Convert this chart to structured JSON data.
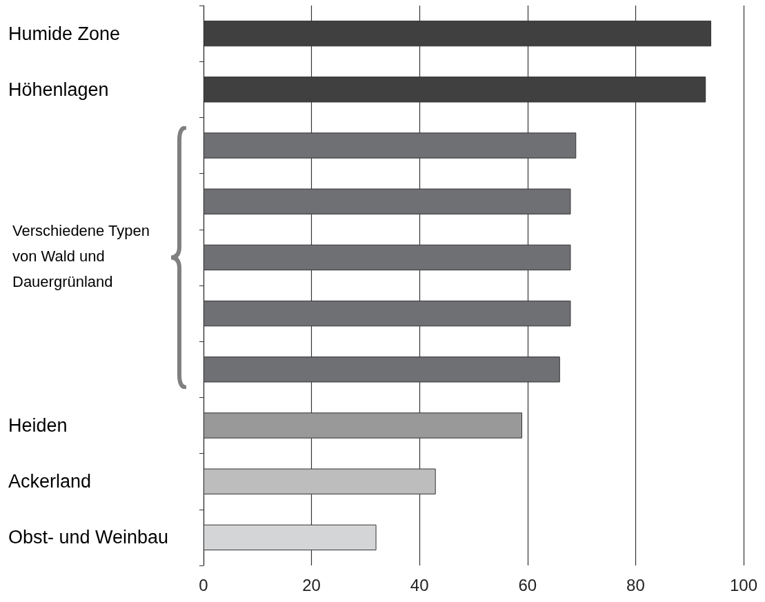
{
  "chart_data": {
    "type": "bar",
    "orientation": "horizontal",
    "categories": [
      "Humide Zone",
      "Höhenlagen",
      null,
      null,
      null,
      null,
      null,
      "Heiden",
      "Ackerland",
      "Obst- und Weinbau"
    ],
    "values": [
      94,
      93,
      69,
      68,
      68,
      68,
      66,
      59,
      43,
      32
    ],
    "colors": [
      "#404040",
      "#404040",
      "#6f7074",
      "#6f7074",
      "#6f7074",
      "#6f7074",
      "#6f7074",
      "#999999",
      "#bdbdbd",
      "#d4d5d7"
    ],
    "xlim": [
      0,
      100
    ],
    "xticks": [
      0,
      20,
      40,
      60,
      80,
      100
    ],
    "grid": "x",
    "annotations": [
      "Verschiedene Typen von Wald und Dauergrünland"
    ]
  }
}
